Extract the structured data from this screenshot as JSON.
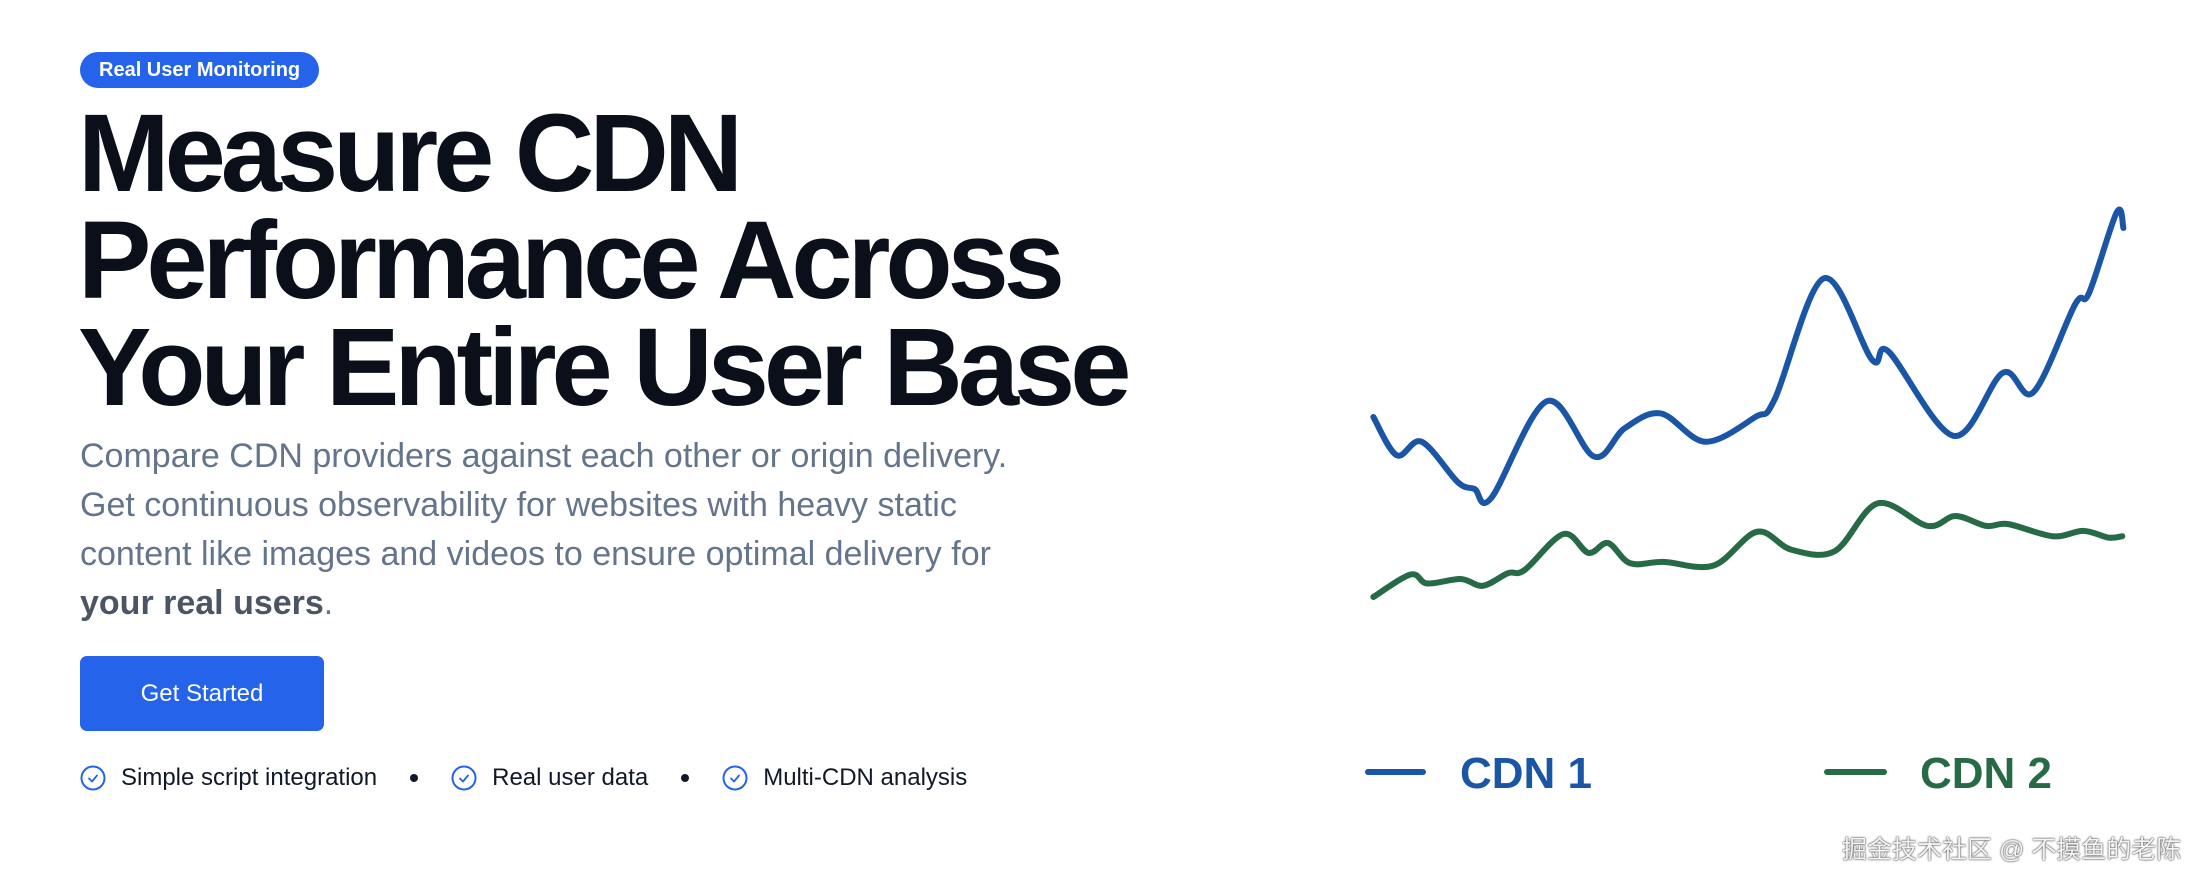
{
  "badge": "Real User Monitoring",
  "headline": [
    "Measure CDN",
    "Performance Across",
    "Your Entire User Base"
  ],
  "description": {
    "lines": [
      "Compare CDN providers against each other or origin delivery.",
      "Get continuous observability for websites with heavy static",
      "content like images and videos to ensure optimal delivery for"
    ],
    "bold": "your real users",
    "end": "."
  },
  "cta_label": "Get Started",
  "features": [
    {
      "icon": "check-circle-icon",
      "label": "Simple script integration"
    },
    {
      "icon": "check-circle-icon",
      "label": "Real user data"
    },
    {
      "icon": "check-circle-icon",
      "label": "Multi-CDN analysis"
    }
  ],
  "colors": {
    "accent": "#2563eb",
    "cdn1": "#1a55a6",
    "cdn2": "#276b46"
  },
  "chart_data": {
    "type": "line",
    "title": "",
    "xlabel": "",
    "ylabel": "",
    "grid": false,
    "legend_position": "bottom",
    "series": [
      {
        "name": "CDN 1",
        "color": "#1a55a6",
        "points": [
          [
            7.8,
            47
          ],
          [
            12,
            38.5
          ],
          [
            16.5,
            41.5
          ],
          [
            23,
            32.5
          ],
          [
            26,
            31
          ],
          [
            29,
            29
          ],
          [
            39,
            50.5
          ],
          [
            47.5,
            38.2
          ],
          [
            53,
            44.5
          ],
          [
            59.5,
            47.8
          ],
          [
            67.5,
            41.5
          ],
          [
            76.5,
            47
          ],
          [
            80,
            51
          ],
          [
            88.8,
            77.8
          ],
          [
            97.5,
            59.7
          ],
          [
            100.5,
            61.5
          ],
          [
            112.2,
            42.8
          ],
          [
            121,
            56.8
          ],
          [
            126.5,
            52.5
          ],
          [
            134,
            72
          ],
          [
            136.5,
            74.5
          ],
          [
            141.5,
            92.5
          ],
          [
            142.7,
            89
          ]
        ]
      },
      {
        "name": "CDN 2",
        "color": "#276b46",
        "points": [
          [
            7.8,
            7
          ],
          [
            14.5,
            12
          ],
          [
            17.5,
            10
          ],
          [
            23.5,
            11
          ],
          [
            27.5,
            9.5
          ],
          [
            32,
            12.3
          ],
          [
            35,
            13
          ],
          [
            42,
            21
          ],
          [
            46.5,
            16.8
          ],
          [
            50,
            19
          ],
          [
            54,
            14.5
          ],
          [
            60,
            14.8
          ],
          [
            69,
            14
          ],
          [
            76.8,
            21.5
          ],
          [
            83,
            17.5
          ],
          [
            90.8,
            17.2
          ],
          [
            98.5,
            27.8
          ],
          [
            107.5,
            22.8
          ],
          [
            112.5,
            25
          ],
          [
            118,
            22.8
          ],
          [
            122,
            23.2
          ],
          [
            130,
            20.5
          ],
          [
            135.5,
            21.7
          ],
          [
            140,
            20.2
          ],
          [
            142.5,
            20.5
          ]
        ]
      }
    ]
  },
  "watermark": "掘金技术社区 @ 不摸鱼的老陈"
}
